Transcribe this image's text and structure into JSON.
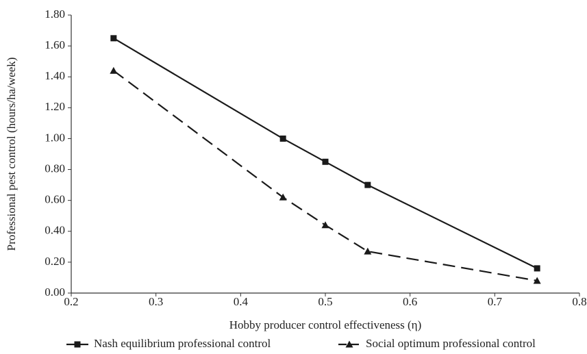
{
  "chart_data": {
    "type": "line",
    "x_label": "Hobby producer control effectiveness (η)",
    "y_label": "Professional pest control (hours/ha/week)",
    "x": [
      0.25,
      0.45,
      0.5,
      0.55,
      0.75
    ],
    "series": [
      {
        "name": "Nash equilibrium professional control",
        "color": "#1a1a1a",
        "marker": "square",
        "dashed": false,
        "values": [
          1.65,
          1.0,
          0.85,
          0.7,
          0.16
        ]
      },
      {
        "name": "Social optimum professional control",
        "color": "#1a1a1a",
        "marker": "triangle",
        "dashed": true,
        "values": [
          1.44,
          0.62,
          0.44,
          0.27,
          0.08
        ]
      }
    ],
    "xlim": [
      0.2,
      0.8
    ],
    "xticks": [
      0.2,
      0.3,
      0.4,
      0.5,
      0.6,
      0.7,
      0.8
    ],
    "ylim": [
      0,
      1.8
    ],
    "yticks": [
      {
        "value": 0,
        "label": "0.00"
      },
      {
        "value": 0.2,
        "label": "0.20"
      },
      {
        "value": 0.4,
        "label": "0.40"
      },
      {
        "value": 0.6,
        "label": "0.60"
      },
      {
        "value": 0.8,
        "label": "0.80"
      },
      {
        "value": 1.0,
        "label": "1.00"
      },
      {
        "value": 1.2,
        "label": "1.20"
      },
      {
        "value": 1.4,
        "label": "1.40"
      },
      {
        "value": 1.6,
        "label": "1.60"
      },
      {
        "value": 1.8,
        "label": "1.80"
      }
    ],
    "grid": false,
    "legend": "bottom"
  }
}
